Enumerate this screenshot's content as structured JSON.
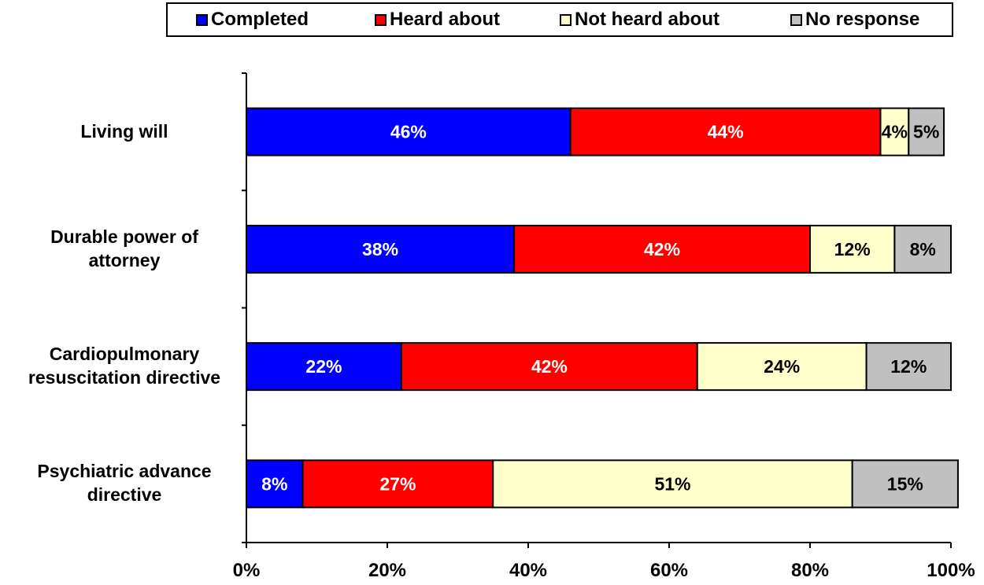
{
  "chart_data": {
    "type": "bar",
    "orientation": "horizontal",
    "stacked": true,
    "categories": [
      "Living will",
      "Durable power of attorney",
      "Cardiopulmonary resuscitation directive",
      "Psychiatric advance directive"
    ],
    "category_lines": [
      [
        "Living will"
      ],
      [
        "Durable power of",
        "attorney"
      ],
      [
        "Cardiopulmonary",
        "resuscitation directive"
      ],
      [
        "Psychiatric advance",
        "directive"
      ]
    ],
    "series": [
      {
        "name": "Completed",
        "color": "#0000ff",
        "label_color": "#ffffff",
        "values": [
          46,
          38,
          22,
          8
        ],
        "labels": [
          "46%",
          "38%",
          "22%",
          "8%"
        ]
      },
      {
        "name": "Heard about",
        "color": "#ff0000",
        "label_color": "#ffffff",
        "values": [
          44,
          42,
          42,
          27
        ],
        "labels": [
          "44%",
          "42%",
          "42%",
          "27%"
        ]
      },
      {
        "name": "Not heard about",
        "color": "#ffffcc",
        "label_color": "#000000",
        "values": [
          4,
          12,
          24,
          51
        ],
        "labels": [
          "4%",
          "12%",
          "24%",
          "51%"
        ]
      },
      {
        "name": "No response",
        "color": "#c0c0c0",
        "label_color": "#000000",
        "values": [
          5,
          8,
          12,
          15
        ],
        "labels": [
          "5%",
          "8%",
          "12%",
          "15%"
        ]
      }
    ],
    "xlim": [
      0,
      100
    ],
    "xticks": [
      "0%",
      "20%",
      "40%",
      "60%",
      "80%",
      "100%"
    ],
    "legend_position": "top",
    "grid": false
  }
}
